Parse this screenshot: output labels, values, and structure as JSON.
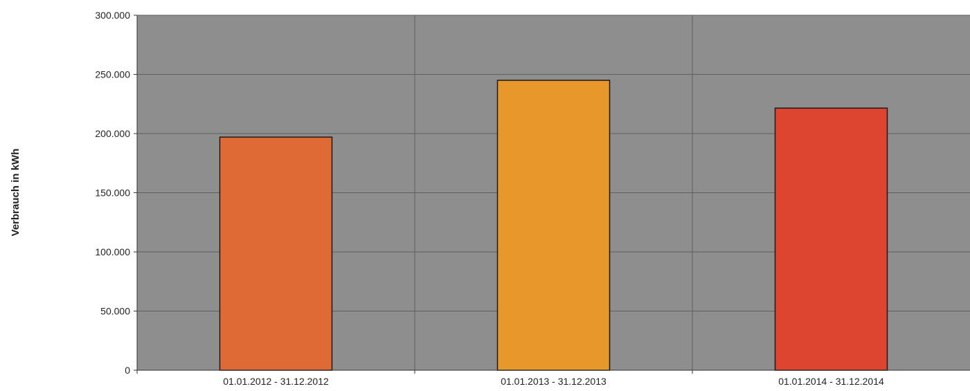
{
  "chart_data": {
    "type": "bar",
    "title": "",
    "xlabel": "",
    "ylabel": "Verbrauch in kWh",
    "categories": [
      "01.01.2012 - 31.12.2012",
      "01.01.2013 - 31.12.2013",
      "01.01.2014 - 31.12.2014"
    ],
    "values": [
      197000,
      245000,
      221500
    ],
    "bar_colors": [
      "#e06a35",
      "#e8982a",
      "#dd4530"
    ],
    "ylim": [
      0,
      300000
    ],
    "yticks": [
      0,
      50000,
      100000,
      150000,
      200000,
      250000,
      300000
    ],
    "ytick_labels": [
      "0",
      "50.000",
      "100.000",
      "150.000",
      "200.000",
      "250.000",
      "300.000"
    ],
    "grid": true,
    "plot_background": "#8e8e8e",
    "grid_color": "#5f5f5f",
    "legend": "none"
  }
}
